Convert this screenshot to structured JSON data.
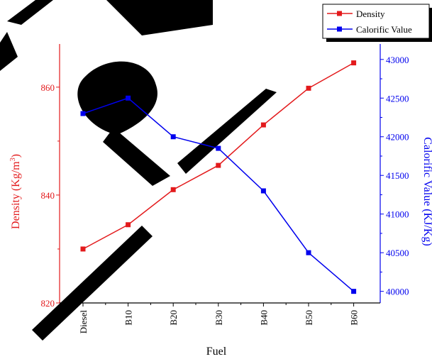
{
  "chart_data": {
    "type": "line",
    "xlabel": "Fuel",
    "categories": [
      "Diesel",
      "B10",
      "B20",
      "B30",
      "B40",
      "B50",
      "B60"
    ],
    "y_left": {
      "label_main": "Density (Kg/m",
      "label_sup": "3",
      "label_end": ")",
      "lim": [
        820,
        868
      ],
      "ticks": [
        820,
        840,
        860
      ],
      "color": "#e31a1c"
    },
    "y_right": {
      "label": "Calorific Value (KJ/Kg)",
      "lim": [
        39850,
        43200
      ],
      "ticks": [
        40000,
        40500,
        41000,
        41500,
        42000,
        42500,
        43000
      ],
      "color": "#0000ee"
    },
    "series": [
      {
        "name": "Density",
        "axis": "left",
        "color": "#e31a1c",
        "marker": "square",
        "values": [
          830,
          834.5,
          841,
          845.5,
          853,
          859.8,
          864.5
        ]
      },
      {
        "name": "Calorific Value",
        "axis": "right",
        "color": "#0000ee",
        "marker": "square",
        "values": [
          42300,
          42500,
          42000,
          41850,
          41300,
          40500,
          40000
        ]
      }
    ],
    "legend_position": "top-right",
    "grid": false
  }
}
